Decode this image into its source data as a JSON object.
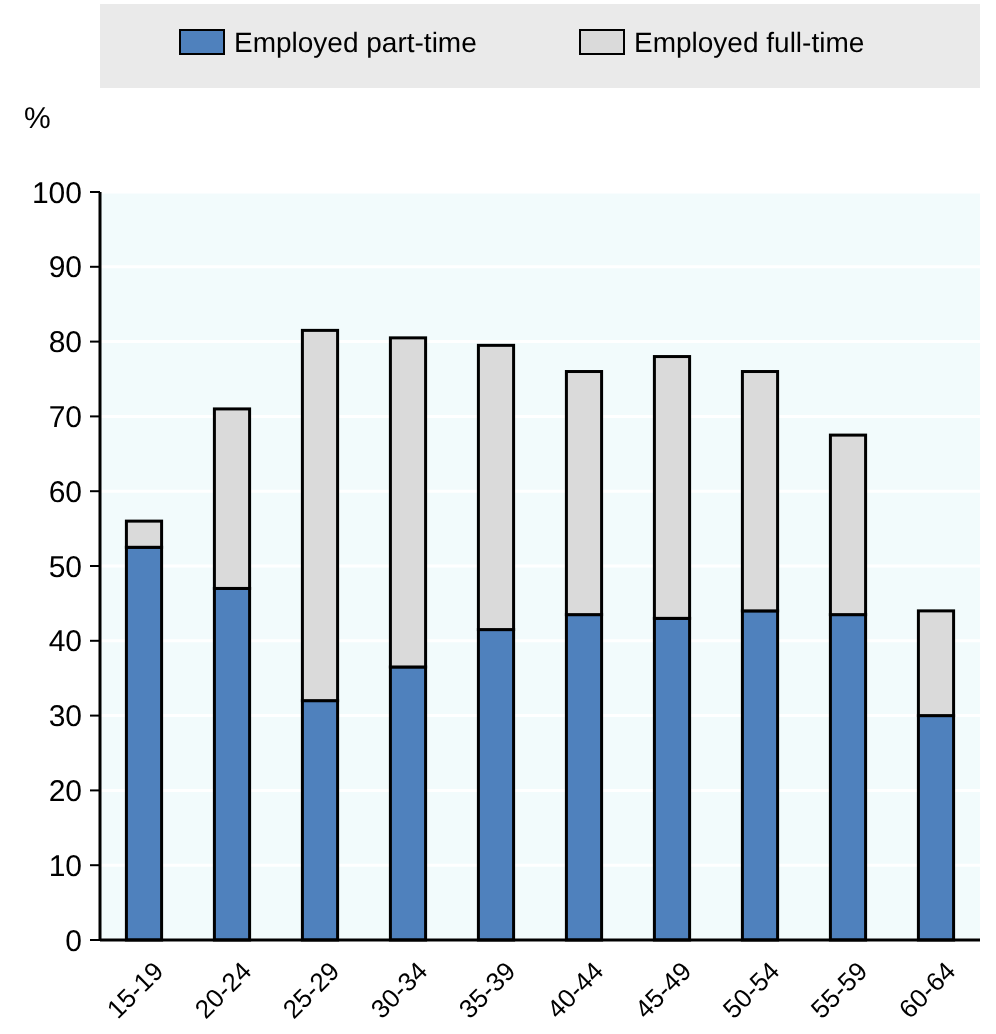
{
  "chart_data": {
    "type": "bar",
    "stacked": true,
    "ylabel": "%",
    "categories": [
      "15-19",
      "20-24",
      "25-29",
      "30-34",
      "35-39",
      "40-44",
      "45-49",
      "50-54",
      "55-59",
      "60-64"
    ],
    "series": [
      {
        "name": "Employed part-time",
        "color": "#4f81bd",
        "values": [
          52.5,
          47,
          32,
          36.5,
          41.5,
          43.5,
          43,
          44,
          43.5,
          30
        ]
      },
      {
        "name": "Employed full-time",
        "color": "#dadada",
        "values": [
          3.5,
          24,
          49.5,
          44,
          38,
          32.5,
          35,
          32,
          24,
          14
        ]
      }
    ],
    "ylim": [
      0,
      100
    ],
    "yticks": [
      0,
      10,
      20,
      30,
      40,
      50,
      60,
      70,
      80,
      90,
      100
    ],
    "grid": "y",
    "legend": "top"
  }
}
